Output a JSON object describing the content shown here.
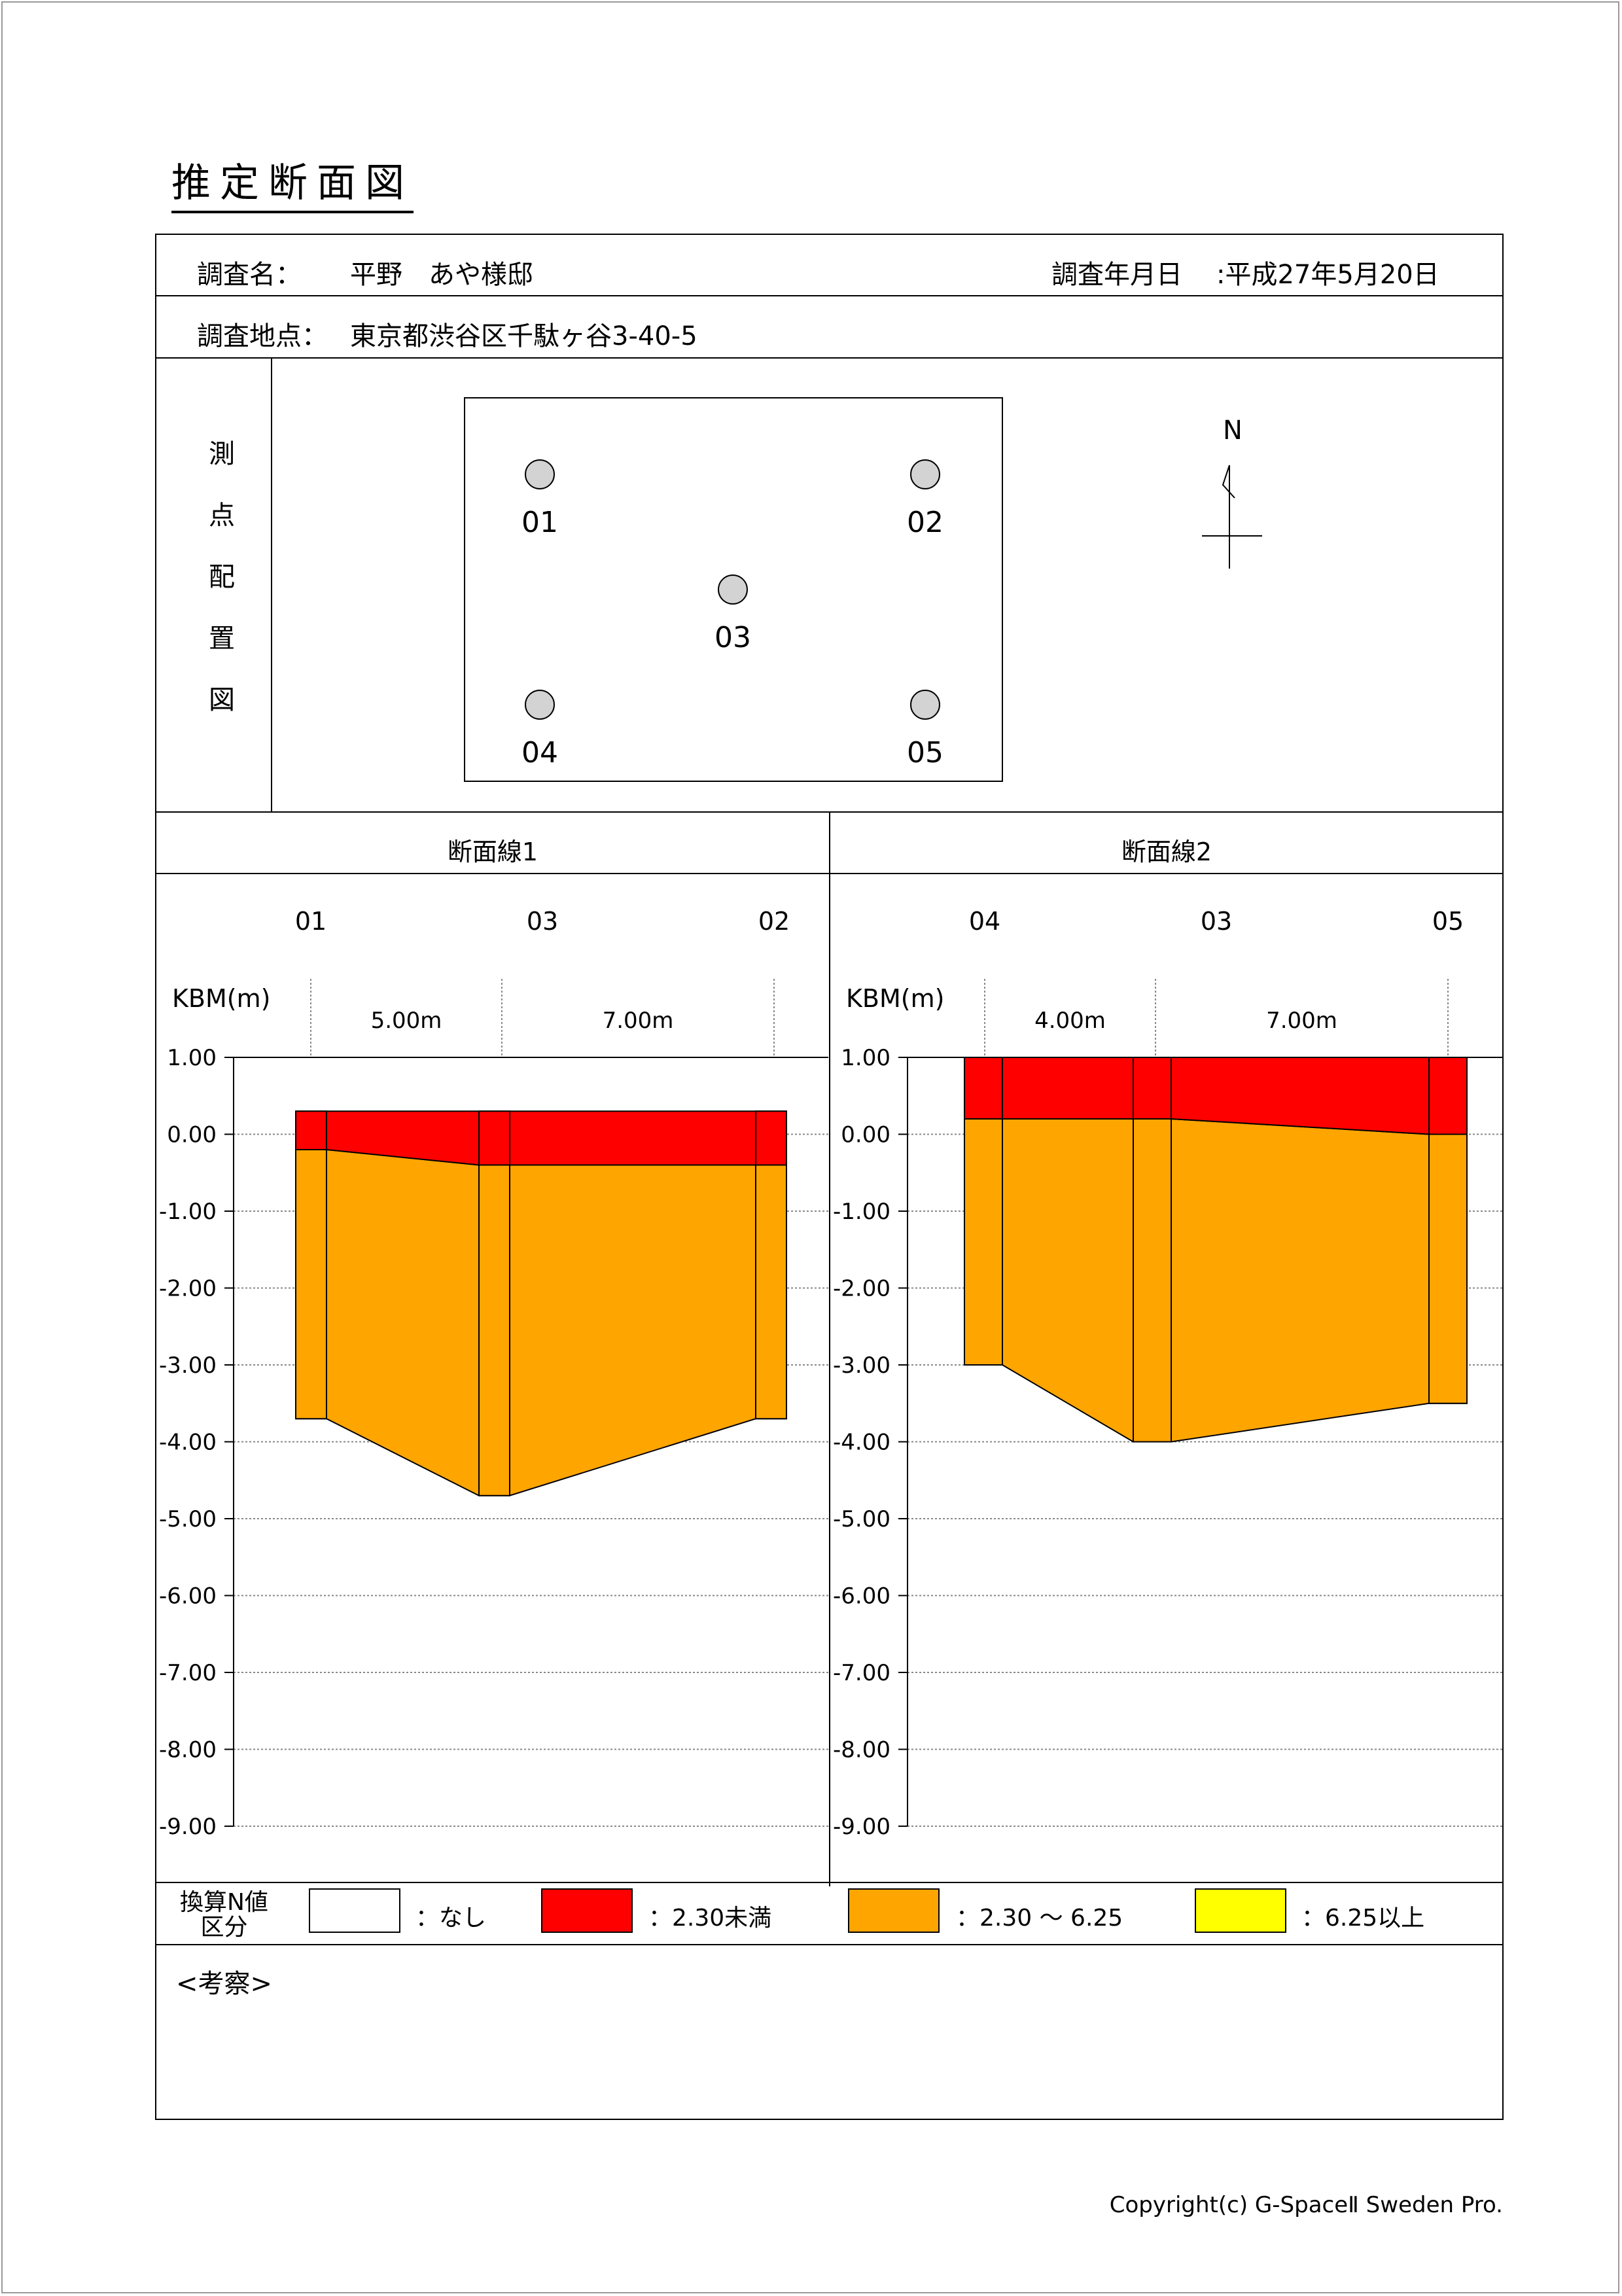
{
  "title": "推定断面図",
  "header": {
    "survey_name_label": "調査名：",
    "survey_name_value": "平野　あや様邸",
    "date_label": "調査年月日",
    "date_value": ":平成27年5月20日",
    "location_label": "調査地点：",
    "location_value": "東京都渋谷区千駄ヶ谷3-40-5"
  },
  "site_plan": {
    "label_chars": [
      "測",
      "点",
      "配",
      "置",
      "図"
    ],
    "points": [
      "01",
      "02",
      "03",
      "04",
      "05"
    ],
    "north_label": "N"
  },
  "sections": [
    {
      "title": "断面線1",
      "points": [
        "01",
        "03",
        "02"
      ],
      "distances": [
        "5.00m",
        "7.00m"
      ],
      "y_label": "KBM(m)",
      "y_ticks": [
        "1.00",
        "0.00",
        "-1.00",
        "-2.00",
        "-3.00",
        "-4.00",
        "-5.00",
        "-6.00",
        "-7.00",
        "-8.00",
        "-9.00"
      ],
      "columns": [
        {
          "name": "01",
          "top": 0.3,
          "boundary": -0.2,
          "bottom": -3.7
        },
        {
          "name": "03",
          "top": 0.3,
          "boundary": -0.4,
          "bottom": -4.7
        },
        {
          "name": "02",
          "top": 0.3,
          "boundary": -0.4,
          "bottom": -3.7
        }
      ]
    },
    {
      "title": "断面線2",
      "points": [
        "04",
        "03",
        "05"
      ],
      "distances": [
        "4.00m",
        "7.00m"
      ],
      "y_label": "KBM(m)",
      "y_ticks": [
        "1.00",
        "0.00",
        "-1.00",
        "-2.00",
        "-3.00",
        "-4.00",
        "-5.00",
        "-6.00",
        "-7.00",
        "-8.00",
        "-9.00"
      ],
      "columns": [
        {
          "name": "04",
          "top": 1.0,
          "boundary": 0.2,
          "bottom": -3.0
        },
        {
          "name": "03",
          "top": 1.0,
          "boundary": 0.2,
          "bottom": -4.0
        },
        {
          "name": "05",
          "top": 1.0,
          "boundary": 0.0,
          "bottom": -3.5
        }
      ]
    }
  ],
  "legend": {
    "title_line1": "換算N値",
    "title_line2": "区分",
    "items": [
      {
        "label": "：なし",
        "color": "#ffffff"
      },
      {
        "label": "：2.30未満",
        "color": "#ff0000"
      },
      {
        "label": "：2.30 ～ 6.25",
        "color": "#ffa500"
      },
      {
        "label": "：6.25以上",
        "color": "#ffff00"
      }
    ]
  },
  "notes_label": "<考察>",
  "copyright": "Copyright(c) G-SpaceⅡ Sweden Pro."
}
